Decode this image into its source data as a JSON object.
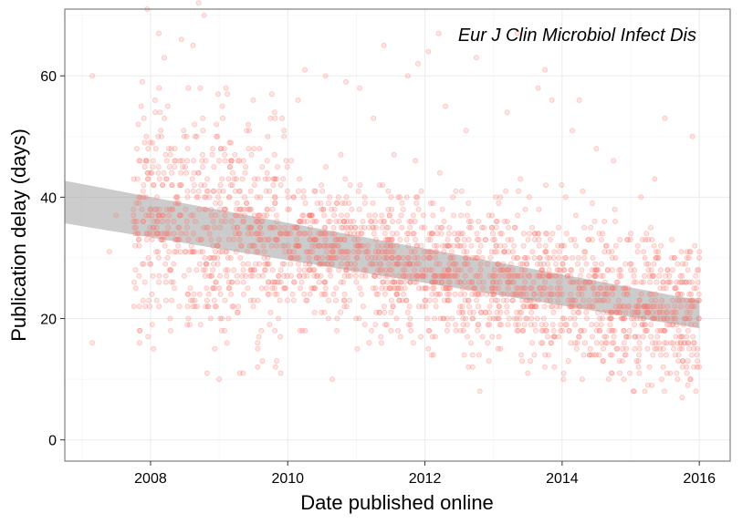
{
  "chart_data": {
    "type": "scatter",
    "title": "",
    "annotation": "Eur J Clin Microbiol Infect Dis",
    "xlabel": "Date published online",
    "ylabel": "Publication delay (days)",
    "xlim": [
      2006.75,
      2016.45
    ],
    "ylim": [
      -3.5,
      71
    ],
    "x_ticks": [
      2008,
      2010,
      2012,
      2014,
      2016
    ],
    "x_tick_labels": [
      "2008",
      "2010",
      "2012",
      "2014",
      "2016"
    ],
    "y_ticks": [
      0,
      20,
      40,
      60
    ],
    "y_tick_labels": [
      "0",
      "20",
      "40",
      "60"
    ],
    "grid": true,
    "point_color": "#F8766D",
    "point_opacity": 0.2,
    "band_color": "#999999",
    "smoothing": {
      "method": "linear",
      "x": [
        2006.75,
        2016.0
      ],
      "fit": [
        39.2,
        20.7
      ],
      "lower": [
        35.7,
        18.4
      ],
      "upper": [
        42.7,
        23.0
      ]
    },
    "points": [
      [
        2007.15,
        16
      ],
      [
        2007.15,
        60
      ],
      [
        2007.5,
        37
      ],
      [
        2007.4,
        31
      ],
      [
        2007.78,
        28
      ],
      [
        2007.82,
        52
      ],
      [
        2007.9,
        42
      ],
      [
        2007.95,
        71
      ],
      [
        2008.0,
        38
      ],
      [
        2008.05,
        35
      ],
      [
        2008.12,
        67
      ],
      [
        2008.2,
        63
      ],
      [
        2008.25,
        55
      ],
      [
        2008.35,
        46
      ],
      [
        2008.45,
        66
      ],
      [
        2008.55,
        58
      ],
      [
        2008.62,
        65
      ],
      [
        2008.7,
        72
      ],
      [
        2008.78,
        70
      ],
      [
        2008.9,
        47
      ],
      [
        2009.05,
        53
      ],
      [
        2009.1,
        58
      ],
      [
        2009.25,
        31
      ],
      [
        2009.35,
        11
      ],
      [
        2009.0,
        10
      ],
      [
        2009.6,
        40
      ],
      [
        2009.75,
        53
      ],
      [
        2009.85,
        45
      ],
      [
        2010.05,
        46
      ],
      [
        2010.15,
        56
      ],
      [
        2010.25,
        61
      ],
      [
        2010.55,
        60
      ],
      [
        2010.65,
        10
      ],
      [
        2010.85,
        59
      ],
      [
        2011.05,
        58
      ],
      [
        2011.25,
        53
      ],
      [
        2011.4,
        65
      ],
      [
        2011.55,
        47
      ],
      [
        2011.75,
        60
      ],
      [
        2011.9,
        62
      ],
      [
        2012.05,
        64
      ],
      [
        2012.2,
        67
      ],
      [
        2012.3,
        55
      ],
      [
        2012.45,
        41
      ],
      [
        2012.55,
        34
      ],
      [
        2012.6,
        51
      ],
      [
        2012.75,
        63
      ],
      [
        2012.8,
        8
      ],
      [
        2013.0,
        25
      ],
      [
        2013.1,
        40
      ],
      [
        2013.2,
        54
      ],
      [
        2013.35,
        67
      ],
      [
        2013.5,
        11
      ],
      [
        2013.65,
        58
      ],
      [
        2013.75,
        61
      ],
      [
        2013.85,
        56
      ],
      [
        2013.95,
        28
      ],
      [
        2014.05,
        40
      ],
      [
        2014.15,
        51
      ],
      [
        2014.25,
        56
      ],
      [
        2014.35,
        21
      ],
      [
        2014.5,
        48
      ],
      [
        2014.6,
        15
      ],
      [
        2014.75,
        46
      ],
      [
        2014.9,
        10
      ],
      [
        2015.0,
        34
      ],
      [
        2015.15,
        40
      ],
      [
        2015.25,
        9
      ],
      [
        2015.35,
        43
      ],
      [
        2015.5,
        53
      ],
      [
        2015.6,
        20
      ],
      [
        2015.7,
        14
      ],
      [
        2015.75,
        7
      ],
      [
        2015.82,
        30
      ],
      [
        2015.9,
        50
      ],
      [
        2015.95,
        8
      ],
      [
        2016.0,
        31
      ]
    ]
  }
}
